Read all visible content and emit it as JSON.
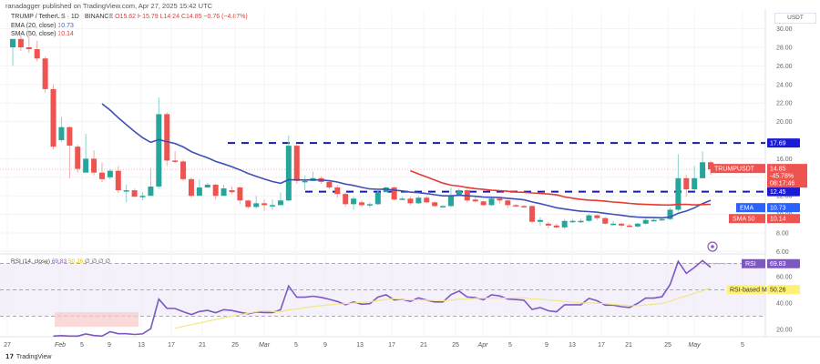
{
  "header": {
    "published": "ranadagger published on TradingView.com, Apr 27, 2025 15:42 UTC",
    "symbol": "TRUMP / TetherUS · 1D · BINANCE",
    "ohlc": {
      "open": "O15.62",
      "high": "H15.79",
      "low": "L14.24",
      "close": "C14.85",
      "change": "−0.76 (−4.87%)"
    },
    "ema_label": "EMA (20, close)",
    "ema_value": "10.73",
    "sma_label": "SMA (50, close)",
    "sma_value": "10.14"
  },
  "axis": {
    "currency": "USDT"
  },
  "rsi_legend": {
    "label": "RSI (14, close)",
    "rsi_value": "69.83",
    "ma_value": "50.26",
    "extras": "∅ ∅ ∅ ∅"
  },
  "price_labels": {
    "resistance": "17.69",
    "support": "12.45",
    "symbol_tag": "TRUMPUSDT",
    "last_price": "14.85",
    "last_change": "-45.78%",
    "countdown": "08:17:46",
    "ema_tag": "EMA",
    "ema_val": "10.73",
    "sma_tag": "SMA 50",
    "sma_val": "10.14",
    "rsi_tag": "RSI",
    "rsi_val": "69.83",
    "rsi_ma_tag": "RSI-based MA",
    "rsi_ma_val": "50.26"
  },
  "footer": {
    "brand": "TradingView"
  },
  "colors": {
    "up": "#26a69a",
    "down": "#ef5350",
    "ema": "#3f51b5",
    "sma": "#e53935",
    "level": "#1a1aa8",
    "rsi": "#7e57c2",
    "rsi_ma": "#f3e58a",
    "rsi_band": "#ede7f6"
  },
  "chart_data": [
    {
      "type": "candlestick",
      "title": "TRUMP / TetherUS · 1D · BINANCE",
      "ylabel": "USDT",
      "ylim": [
        5.5,
        30
      ],
      "yticks": [
        6,
        8,
        10,
        12,
        14,
        16,
        20,
        22,
        24,
        26,
        28,
        30
      ],
      "xticks": [
        "27",
        "Feb",
        "5",
        "9",
        "13",
        "17",
        "21",
        "25",
        "Mar",
        "5",
        "9",
        "13",
        "17",
        "21",
        "25",
        "Apr",
        "5",
        "9",
        "13",
        "17",
        "21",
        "25",
        "May",
        "5"
      ],
      "horizontal_levels": [
        {
          "name": "Resistance",
          "value": 17.69
        },
        {
          "name": "Support",
          "value": 12.45
        }
      ],
      "last": {
        "open": 15.62,
        "high": 15.79,
        "low": 14.24,
        "close": 14.85
      },
      "candles": [
        [
          28.0,
          28.9,
          28.9,
          26.0
        ],
        [
          28.9,
          28.0,
          29.6,
          27.6
        ],
        [
          28.0,
          27.8,
          29.2,
          27.4
        ],
        [
          27.8,
          26.8,
          28.7,
          26.5
        ],
        [
          26.8,
          23.5,
          27.0,
          23.1
        ],
        [
          23.5,
          17.3,
          24.0,
          17.0
        ],
        [
          18.0,
          19.4,
          20.5,
          17.8
        ],
        [
          19.4,
          17.4,
          19.5,
          13.9
        ],
        [
          17.3,
          14.9,
          17.5,
          14.5
        ],
        [
          14.5,
          16.0,
          18.7,
          15.8
        ],
        [
          16.0,
          14.5,
          16.9,
          14.2
        ],
        [
          14.5,
          13.8,
          15.6,
          13.5
        ],
        [
          14.0,
          14.7,
          14.9,
          13.8
        ],
        [
          14.7,
          12.6,
          15.2,
          12.3
        ],
        [
          12.6,
          12.6,
          13.2,
          11.3
        ],
        [
          12.6,
          11.9,
          12.8,
          11.9
        ],
        [
          11.9,
          12.0,
          12.4,
          11.5
        ],
        [
          12.0,
          13.0,
          15.0,
          12.0
        ],
        [
          13.0,
          20.8,
          22.6,
          12.8
        ],
        [
          20.8,
          15.8,
          21.0,
          15.2
        ],
        [
          15.8,
          15.7,
          16.8,
          15.5
        ],
        [
          15.7,
          13.8,
          15.9,
          13.6
        ],
        [
          13.8,
          12.0,
          14.0,
          11.8
        ],
        [
          12.0,
          12.9,
          13.8,
          12.5
        ],
        [
          12.9,
          13.2,
          13.4,
          12.9
        ],
        [
          13.2,
          12.0,
          13.3,
          11.6
        ],
        [
          12.0,
          12.8,
          13.2,
          12.7
        ],
        [
          12.6,
          12.4,
          13.0,
          12.2
        ],
        [
          12.9,
          11.5,
          13.0,
          11.1
        ],
        [
          11.5,
          10.8,
          11.6,
          10.6
        ],
        [
          10.8,
          11.2,
          12.0,
          10.6
        ],
        [
          11.2,
          11.0,
          11.6,
          10.4
        ],
        [
          11.0,
          11.0,
          11.6,
          10.5
        ],
        [
          11.0,
          11.5,
          12.4,
          11.0
        ],
        [
          11.5,
          17.4,
          18.5,
          11.4
        ],
        [
          17.4,
          13.6,
          17.5,
          13.3
        ],
        [
          13.6,
          13.6,
          14.2,
          12.6
        ],
        [
          13.6,
          13.9,
          14.6,
          13.6
        ],
        [
          13.9,
          13.5,
          14.1,
          13.3
        ],
        [
          13.5,
          12.9,
          13.7,
          12.7
        ],
        [
          12.9,
          12.2,
          13.2,
          11.8
        ],
        [
          12.2,
          11.1,
          12.4,
          10.8
        ],
        [
          11.1,
          11.7,
          11.9,
          10.5
        ],
        [
          11.3,
          11.0,
          11.5,
          10.8
        ],
        [
          11.0,
          11.1,
          11.3,
          10.7
        ],
        [
          11.1,
          12.4,
          12.8,
          11.0
        ],
        [
          12.4,
          12.9,
          13.0,
          12.4
        ],
        [
          12.9,
          11.6,
          13.0,
          11.5
        ],
        [
          11.6,
          11.7,
          11.9,
          11.6
        ],
        [
          11.7,
          11.2,
          11.9,
          11.0
        ],
        [
          11.2,
          11.8,
          12.0,
          11.1
        ],
        [
          11.8,
          11.3,
          12.0,
          11.2
        ],
        [
          11.3,
          10.9,
          11.4,
          10.8
        ],
        [
          10.9,
          10.9,
          11.0,
          10.7
        ],
        [
          10.9,
          12.0,
          12.9,
          10.8
        ],
        [
          12.0,
          12.6,
          12.8,
          12.0
        ],
        [
          12.6,
          11.5,
          12.7,
          11.3
        ],
        [
          11.6,
          11.4,
          12.0,
          11.3
        ],
        [
          11.4,
          11.0,
          11.5,
          10.9
        ],
        [
          11.0,
          11.7,
          11.8,
          10.9
        ],
        [
          11.7,
          11.5,
          11.8,
          11.2
        ],
        [
          11.5,
          11.0,
          11.6,
          10.7
        ],
        [
          11.0,
          10.9,
          11.1,
          10.8
        ],
        [
          10.9,
          10.8,
          11.0,
          10.7
        ],
        [
          10.9,
          9.2,
          11.0,
          9.0
        ],
        [
          9.2,
          9.4,
          9.7,
          8.8
        ],
        [
          9.0,
          8.8,
          9.2,
          8.5
        ],
        [
          8.8,
          8.6,
          9.0,
          8.5
        ],
        [
          8.6,
          9.3,
          9.5,
          8.4
        ],
        [
          9.3,
          9.3,
          9.5,
          9.1
        ],
        [
          9.3,
          9.3,
          9.5,
          9.1
        ],
        [
          9.3,
          9.9,
          10.1,
          9.2
        ],
        [
          9.9,
          9.6,
          10.0,
          9.4
        ],
        [
          9.6,
          9.0,
          9.7,
          8.9
        ],
        [
          9.0,
          9.0,
          9.3,
          8.8
        ],
        [
          9.0,
          8.8,
          9.1,
          8.6
        ],
        [
          8.8,
          8.7,
          9.0,
          8.6
        ],
        [
          8.7,
          9.0,
          9.1,
          8.6
        ],
        [
          9.0,
          9.4,
          9.6,
          8.9
        ],
        [
          9.4,
          9.4,
          9.6,
          9.2
        ],
        [
          9.4,
          9.5,
          9.6,
          9.3
        ],
        [
          9.5,
          10.5,
          10.7,
          9.4
        ],
        [
          10.5,
          13.9,
          16.5,
          10.3
        ],
        [
          13.9,
          12.7,
          14.3,
          11.9
        ],
        [
          12.7,
          13.9,
          15.2,
          12.5
        ],
        [
          13.9,
          15.62,
          16.8,
          13.9
        ],
        [
          15.62,
          14.85,
          15.79,
          14.24
        ]
      ]
    },
    {
      "type": "line",
      "title": "RSI (14, close)",
      "ylim": [
        15,
        75
      ],
      "yticks": [
        20,
        40,
        60
      ],
      "bands": [
        30,
        50,
        70
      ],
      "series": [
        {
          "name": "RSI",
          "last": 69.83
        },
        {
          "name": "RSI-based MA",
          "last": 50.26
        }
      ]
    }
  ]
}
